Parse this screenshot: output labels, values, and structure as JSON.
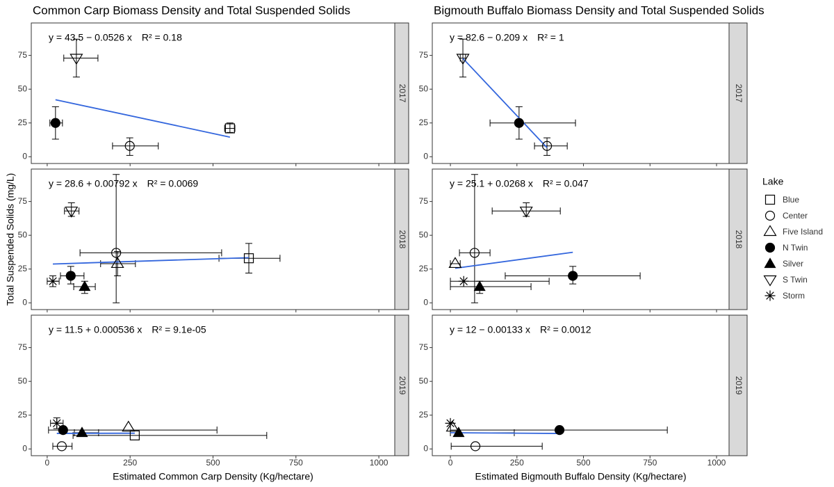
{
  "chart_data": [
    {
      "type": "scatter",
      "title": "Common Carp Biomass Density and Total Suspended Solids",
      "xlabel": "Estimated Common Carp Density (Kg/hectare)",
      "ylabel": "Total Suspended Solids (mg/L)",
      "xlim": [
        -48,
        1048
      ],
      "xticks": [
        0,
        250,
        500,
        750,
        1000
      ],
      "ylim": [
        -5,
        99
      ],
      "yticks": [
        0,
        25,
        50,
        75
      ],
      "grid": false,
      "fit_color": "#3366dd",
      "panels": [
        {
          "label": "2017",
          "equation": "y = 43.5 − 0.0526 x",
          "r_squared": "R² = 0.18",
          "fit": {
            "intercept": 43.5,
            "slope": -0.0526
          },
          "points": [
            {
              "lake": "N Twin",
              "x": 25,
              "y": 25,
              "x_err": [
                8,
                46
              ],
              "y_err": [
                13,
                37
              ]
            },
            {
              "lake": "S Twin",
              "x": 88,
              "y": 73,
              "x_err": [
                50,
                153
              ],
              "y_err": [
                59,
                87
              ]
            },
            {
              "lake": "Center",
              "x": 249,
              "y": 8,
              "x_err": [
                197,
                335
              ],
              "y_err": [
                1,
                14
              ]
            },
            {
              "lake": "Blue",
              "x": 551,
              "y": 21,
              "x_err": [
                535,
                566
              ],
              "y_err": [
                18,
                25
              ]
            }
          ]
        },
        {
          "label": "2018",
          "equation": "y = 28.6 + 0.00792 x",
          "r_squared": "R² = 0.0069",
          "fit": {
            "intercept": 28.6,
            "slope": 0.00792
          },
          "points": [
            {
              "lake": "S Twin",
              "x": 73,
              "y": 68,
              "x_err": [
                52,
                96
              ],
              "y_err": [
                64,
                74
              ]
            },
            {
              "lake": "Center",
              "x": 208,
              "y": 37,
              "x_err": [
                99,
                526
              ],
              "y_err": [
                0,
                95
              ]
            },
            {
              "lake": "Five Island",
              "x": 212,
              "y": 29,
              "x_err": [
                161,
                266
              ],
              "y_err": [
                20,
                38
              ]
            },
            {
              "lake": "Blue",
              "x": 608,
              "y": 33,
              "x_err": [
                518,
                702
              ],
              "y_err": [
                22,
                44
              ]
            },
            {
              "lake": "N Twin",
              "x": 71,
              "y": 20,
              "x_err": [
                40,
                111
              ],
              "y_err": [
                14,
                27
              ]
            },
            {
              "lake": "Silver",
              "x": 113,
              "y": 12,
              "x_err": [
                80,
                145
              ],
              "y_err": [
                7,
                16
              ]
            },
            {
              "lake": "Storm",
              "x": 17,
              "y": 16,
              "x_err": [
                0,
                36
              ],
              "y_err": [
                12,
                20
              ]
            }
          ]
        },
        {
          "label": "2019",
          "equation": "y = 11.5 + 0.000536 x",
          "r_squared": "R² = 9.1e-05",
          "fit": {
            "intercept": 11.5,
            "slope": 0.000536
          },
          "points": [
            {
              "lake": "Storm",
              "x": 29,
              "y": 19,
              "x_err": [
                10,
                48
              ],
              "y_err": [
                15,
                23
              ]
            },
            {
              "lake": "N Twin",
              "x": 48,
              "y": 14,
              "x_err": [
                4,
                512
              ]
            },
            {
              "lake": "Silver",
              "x": 105,
              "y": 12,
              "x_err": [
                82,
                155
              ]
            },
            {
              "lake": "Five Island",
              "x": 245,
              "y": 16
            },
            {
              "lake": "Blue",
              "x": 264,
              "y": 10,
              "x_err": [
                78,
                662
              ]
            },
            {
              "lake": "Center",
              "x": 44,
              "y": 2,
              "x_err": [
                17,
                75
              ]
            }
          ]
        }
      ]
    },
    {
      "type": "scatter",
      "title": "Bigmouth Buffalo Biomass Density and Total Suspended Solids",
      "xlabel": "Estimated Bigmouth Buffalo Density (Kg/hectare)",
      "xlim": [
        -68,
        1047
      ],
      "xticks": [
        0,
        250,
        500,
        750,
        1000
      ],
      "ylim": [
        -5,
        99
      ],
      "yticks": [
        0,
        25,
        50,
        75
      ],
      "grid": false,
      "fit_color": "#3366dd",
      "panels": [
        {
          "label": "2017",
          "equation": "y = 82.6 − 0.209 x",
          "r_squared": "R² = 1",
          "fit": {
            "intercept": 82.6,
            "slope": -0.209
          },
          "points": [
            {
              "lake": "S Twin",
              "x": 47,
              "y": 73,
              "x_err": [
                37,
                57
              ],
              "y_err": [
                59,
                87
              ]
            },
            {
              "lake": "N Twin",
              "x": 258,
              "y": 25,
              "x_err": [
                149,
                470
              ],
              "y_err": [
                13,
                37
              ]
            },
            {
              "lake": "Center",
              "x": 363,
              "y": 8,
              "x_err": [
                316,
                439
              ],
              "y_err": [
                1,
                14
              ]
            }
          ]
        },
        {
          "label": "2018",
          "equation": "y = 25.1 + 0.0268 x",
          "r_squared": "R² = 0.047",
          "fit": {
            "intercept": 25.1,
            "slope": 0.0268
          },
          "points": [
            {
              "lake": "Five Island",
              "x": 18,
              "y": 29,
              "x_err": [
                0,
                37
              ]
            },
            {
              "lake": "Center",
              "x": 91,
              "y": 37,
              "x_err": [
                34,
                149
              ],
              "y_err": [
                0,
                95
              ]
            },
            {
              "lake": "S Twin",
              "x": 285,
              "y": 68,
              "x_err": [
                157,
                413
              ],
              "y_err": [
                64,
                74
              ]
            },
            {
              "lake": "Storm",
              "x": 50,
              "y": 16,
              "x_err": [
                0,
                371
              ]
            },
            {
              "lake": "Silver",
              "x": 110,
              "y": 12,
              "x_err": [
                0,
                303
              ],
              "y_err": [
                7,
                16
              ]
            },
            {
              "lake": "N Twin",
              "x": 460,
              "y": 20,
              "x_err": [
                206,
                713
              ],
              "y_err": [
                14,
                27
              ]
            }
          ]
        },
        {
          "label": "2019",
          "equation": "y = 12 − 0.00133 x",
          "r_squared": "R² = 0.0012",
          "fit": {
            "intercept": 12,
            "slope": -0.00133
          },
          "points": [
            {
              "lake": "Storm",
              "x": 0,
              "y": 19
            },
            {
              "lake": "Five Island",
              "x": 8,
              "y": 16
            },
            {
              "lake": "Silver",
              "x": 31,
              "y": 12,
              "x_err": [
                0,
                240
              ]
            },
            {
              "lake": "N Twin",
              "x": 410,
              "y": 14,
              "x_err": [
                0,
                815
              ]
            },
            {
              "lake": "Center",
              "x": 94,
              "y": 2,
              "x_err": [
                3,
                345
              ]
            }
          ]
        }
      ]
    }
  ],
  "legend": {
    "title": "Lake",
    "entries": [
      {
        "name": "Blue",
        "shape": "square"
      },
      {
        "name": "Center",
        "shape": "circle"
      },
      {
        "name": "Five Island",
        "shape": "triangle"
      },
      {
        "name": "N Twin",
        "shape": "filled-circle"
      },
      {
        "name": "Silver",
        "shape": "filled-triangle"
      },
      {
        "name": "S Twin",
        "shape": "down-triangle"
      },
      {
        "name": "Storm",
        "shape": "asterisk"
      }
    ]
  }
}
